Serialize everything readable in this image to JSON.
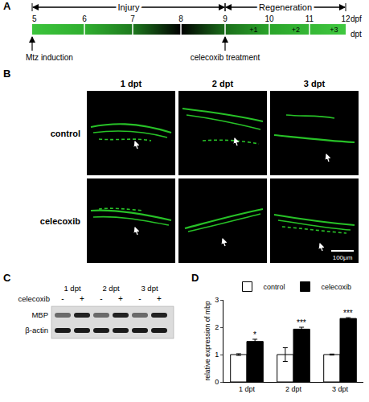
{
  "panels": {
    "A": {
      "label": "A",
      "phases": [
        "Injury",
        "Regeneration"
      ],
      "dpf": [
        "5",
        "6",
        "7",
        "8",
        "9",
        "10",
        "11",
        "12"
      ],
      "dpt": [
        "+1",
        "+2",
        "+3"
      ],
      "dpf_unit": "dpf",
      "dpt_unit": "dpt",
      "events": [
        "Mtz induction",
        "celecoxib treatment"
      ]
    },
    "B": {
      "label": "B",
      "columns": [
        "1 dpt",
        "2 dpt",
        "3 dpt"
      ],
      "rows": [
        "control",
        "celecoxib"
      ],
      "scale_bar": "100μm"
    },
    "C": {
      "label": "C",
      "columns": [
        "1 dpt",
        "2 dpt",
        "3 dpt"
      ],
      "treatment": "celecoxib",
      "signs": [
        "-",
        "+"
      ],
      "bands": [
        "MBP",
        "β-actin"
      ]
    }
  },
  "chart_data": {
    "label": "D",
    "type": "bar",
    "categories": [
      "1 dpt",
      "2 dpt",
      "3 dpt"
    ],
    "series": [
      {
        "name": "control",
        "color": "#ffffff",
        "values": [
          1,
          1,
          1
        ],
        "errors": [
          0.03,
          0.25,
          0.02
        ]
      },
      {
        "name": "celecoxib",
        "color": "#000000",
        "values": [
          1.48,
          1.93,
          2.32
        ],
        "errors": [
          0.08,
          0.07,
          0.03
        ],
        "significance": [
          "*",
          "***",
          "***"
        ]
      }
    ],
    "y_label": "relative expression of mbp",
    "ylim": [
      0,
      3
    ],
    "yticks": [
      0,
      1,
      2,
      3
    ],
    "legend": "top",
    "grid": false
  }
}
